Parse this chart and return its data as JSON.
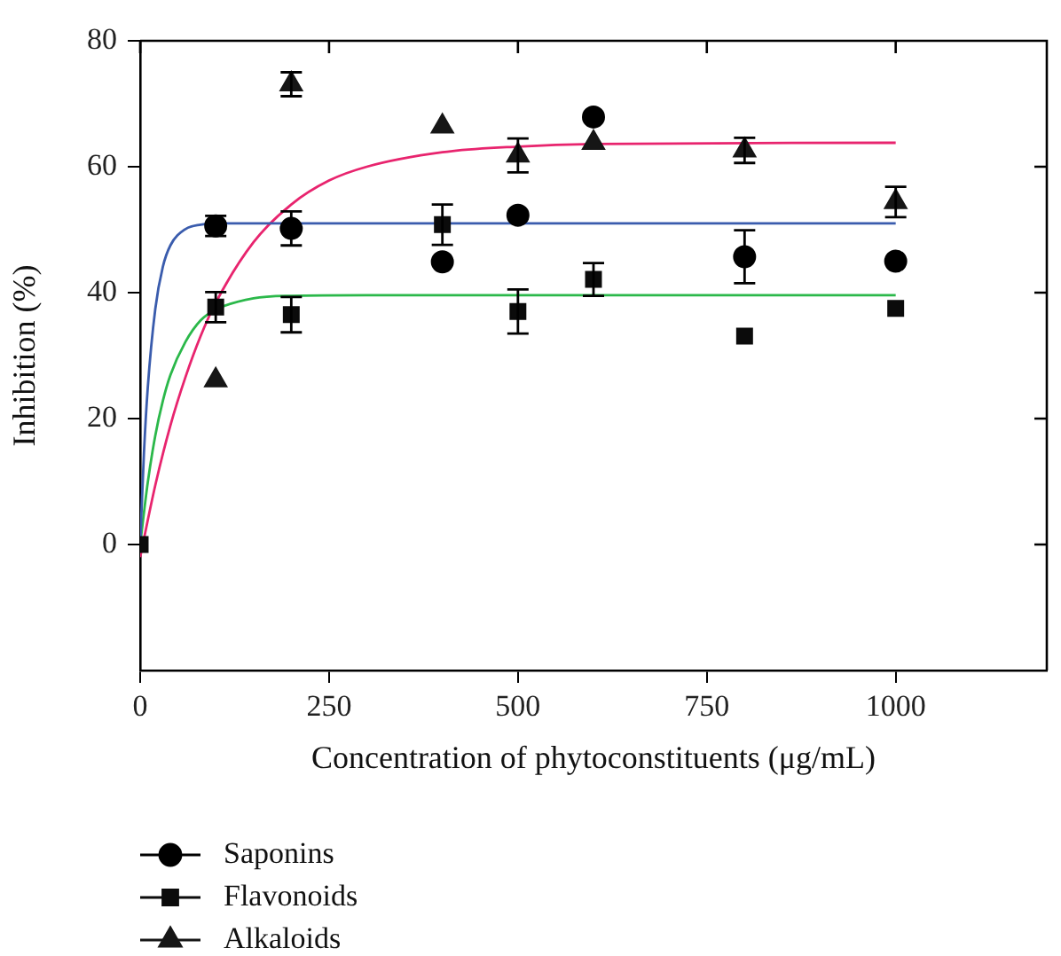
{
  "chart_data": {
    "type": "scatter",
    "xlabel": "Concentration of phytoconstituents (μg/mL)",
    "ylabel": "Inhibition (%)",
    "xlim": [
      0,
      1200
    ],
    "ylim": [
      -20,
      80
    ],
    "xticks": [
      0,
      250,
      500,
      750,
      1000
    ],
    "yticks": [
      0,
      20,
      40,
      60,
      80
    ],
    "grid": false,
    "legend": "bottom left",
    "series": [
      {
        "name": "Saponins",
        "color": "#000000",
        "marker": "circle",
        "x": [
          100,
          200,
          400,
          500,
          600,
          800,
          1000
        ],
        "values": [
          50.6,
          50.2,
          44.9,
          52.3,
          67.9,
          45.7,
          45
        ],
        "errors": [
          1.6,
          2.7,
          null,
          null,
          null,
          4.2,
          null
        ]
      },
      {
        "name": "Flavonoids",
        "color": "#0b0b0b",
        "marker": "square",
        "x": [
          0,
          100,
          200,
          400,
          500,
          600,
          800,
          1000
        ],
        "values": [
          0,
          37.7,
          36.5,
          50.8,
          37,
          42.1,
          33.1,
          37.5
        ],
        "errors": [
          null,
          2.4,
          2.8,
          3.2,
          3.5,
          2.6,
          null,
          null
        ]
      },
      {
        "name": "Alkaloids",
        "color": "#161616",
        "marker": "triangle",
        "x": [
          100,
          200,
          400,
          500,
          600,
          800,
          1000
        ],
        "values": [
          26.1,
          73.1,
          66.4,
          61.8,
          63.8,
          62.6,
          54.4
        ],
        "errors": [
          null,
          1.9,
          null,
          2.7,
          null,
          2,
          2.4
        ]
      },
      {
        "type": "line",
        "color": "#3a5cad",
        "marker": "none",
        "x": [
          0,
          5,
          10,
          20,
          30,
          40,
          60,
          80,
          100,
          1000
        ],
        "values": [
          0,
          14.5,
          24.8,
          37.4,
          44.1,
          47.5,
          50.1,
          50.8,
          51,
          51
        ]
      },
      {
        "type": "line",
        "color": "#2bb84a",
        "marker": "none",
        "x": [
          0,
          10,
          20,
          30,
          40,
          60,
          80,
          100,
          150,
          200,
          300,
          1000
        ],
        "values": [
          0,
          9.8,
          17.3,
          22.8,
          26.9,
          32.2,
          35.6,
          37.3,
          39.1,
          39.5,
          39.6,
          39.6
        ]
      },
      {
        "type": "line",
        "color": "#e8246e",
        "marker": "none",
        "x": [
          0,
          20,
          40,
          60,
          80,
          100,
          150,
          200,
          250,
          300,
          400,
          500,
          600,
          1000
        ],
        "values": [
          -2,
          9.4,
          18.9,
          26.6,
          33.1,
          38.4,
          48,
          54,
          57.8,
          60,
          62.3,
          63.2,
          63.6,
          63.8
        ]
      }
    ]
  }
}
